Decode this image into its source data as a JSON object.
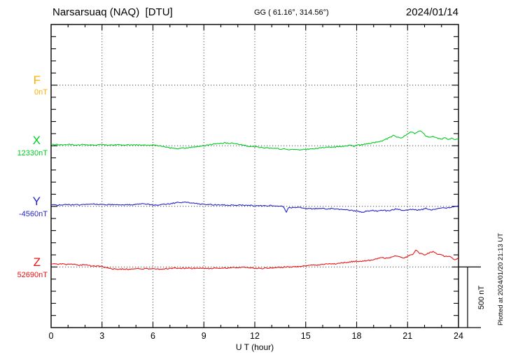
{
  "chart_data": {
    "type": "line",
    "title": "Narsarsuaq (NAQ)  [DTU]",
    "subtitle_gg": "GG ( 61.16°, 314.56°)",
    "date": "2024/01/14",
    "xlabel": "U T (hour)",
    "x_tick_labels": [
      "0",
      "3",
      "6",
      "9",
      "12",
      "15",
      "18",
      "21",
      "24"
    ],
    "x_range_hours": [
      0,
      24
    ],
    "x_major_tick_hours": 3,
    "x_minor_tick_hours": 1,
    "y_minor_tick_nT": 100,
    "grid": "dotted vertical lines every 3 hours, dotted horizontal line at each component baseline",
    "legend_position": "left-side component labels with baseline values",
    "scale_bar": {
      "label": "500 nT",
      "nT": 500
    },
    "plotted_note": "Plotted at 2024/01/20 21:13 UT",
    "series": [
      {
        "id": "F",
        "label": "F",
        "baseline_label": "0nT",
        "baseline_nT": 0,
        "color": "#FFB000",
        "points_hour_offsetnT": []
      },
      {
        "id": "X",
        "label": "X",
        "baseline_label": "12330nT",
        "baseline_nT": 12330,
        "color": "#00CC22",
        "points_hour_offsetnT": [
          [
            0,
            10
          ],
          [
            0.5,
            8
          ],
          [
            1,
            10
          ],
          [
            1.5,
            6
          ],
          [
            2,
            9
          ],
          [
            2.5,
            5
          ],
          [
            3,
            9
          ],
          [
            3.5,
            6
          ],
          [
            4,
            8
          ],
          [
            4.5,
            5
          ],
          [
            5,
            7
          ],
          [
            5.5,
            4
          ],
          [
            6,
            6
          ],
          [
            6.3,
            2
          ],
          [
            6.6,
            -6
          ],
          [
            7,
            -18
          ],
          [
            7.4,
            -25
          ],
          [
            7.8,
            -20
          ],
          [
            8.2,
            -14
          ],
          [
            8.6,
            -7
          ],
          [
            9,
            0
          ],
          [
            9.4,
            10
          ],
          [
            9.8,
            18
          ],
          [
            10.2,
            23
          ],
          [
            10.6,
            20
          ],
          [
            11,
            12
          ],
          [
            11.4,
            4
          ],
          [
            11.7,
            -5
          ],
          [
            12,
            -8
          ],
          [
            12.5,
            -15
          ],
          [
            13,
            -21
          ],
          [
            13.5,
            -26
          ],
          [
            14,
            -30
          ],
          [
            14.5,
            -34
          ],
          [
            15,
            -30
          ],
          [
            15.5,
            -24
          ],
          [
            16,
            -17
          ],
          [
            16.5,
            -12
          ],
          [
            17,
            -8
          ],
          [
            17.3,
            -4
          ],
          [
            17.6,
            2
          ],
          [
            17.8,
            -3
          ],
          [
            18,
            2
          ],
          [
            18.4,
            10
          ],
          [
            18.8,
            20
          ],
          [
            19.2,
            30
          ],
          [
            19.6,
            45
          ],
          [
            20,
            70
          ],
          [
            20.2,
            87
          ],
          [
            20.4,
            70
          ],
          [
            20.6,
            63
          ],
          [
            20.8,
            80
          ],
          [
            21,
            95
          ],
          [
            21.2,
            118
          ],
          [
            21.4,
            100
          ],
          [
            21.6,
            115
          ],
          [
            21.75,
            127
          ],
          [
            21.9,
            110
          ],
          [
            22.1,
            80
          ],
          [
            22.3,
            70
          ],
          [
            22.5,
            75
          ],
          [
            22.7,
            62
          ],
          [
            23,
            55
          ],
          [
            23.2,
            65
          ],
          [
            23.4,
            55
          ],
          [
            23.6,
            60
          ],
          [
            23.8,
            52
          ],
          [
            24,
            60
          ]
        ]
      },
      {
        "id": "Y",
        "label": "Y",
        "baseline_label": "-4560nT",
        "baseline_nT": -4560,
        "color": "#2222CC",
        "points_hour_offsetnT": [
          [
            0,
            12
          ],
          [
            0.5,
            10
          ],
          [
            1,
            14
          ],
          [
            1.5,
            12
          ],
          [
            2,
            16
          ],
          [
            2.5,
            20
          ],
          [
            3,
            15
          ],
          [
            3.5,
            14
          ],
          [
            4,
            16
          ],
          [
            4.5,
            12
          ],
          [
            5,
            15
          ],
          [
            5.5,
            20
          ],
          [
            6,
            12
          ],
          [
            6.5,
            14
          ],
          [
            7,
            22
          ],
          [
            7.4,
            30
          ],
          [
            7.8,
            34
          ],
          [
            8.2,
            30
          ],
          [
            8.6,
            22
          ],
          [
            9,
            16
          ],
          [
            9.5,
            13
          ],
          [
            10,
            12
          ],
          [
            10.5,
            10
          ],
          [
            11,
            10
          ],
          [
            11.5,
            8
          ],
          [
            12,
            6
          ],
          [
            12.5,
            5
          ],
          [
            13,
            6
          ],
          [
            13.4,
            2
          ],
          [
            13.7,
            -3
          ],
          [
            13.85,
            -50
          ],
          [
            14,
            -8
          ],
          [
            14.3,
            -12
          ],
          [
            14.6,
            -10
          ],
          [
            15,
            -16
          ],
          [
            15.4,
            -20
          ],
          [
            15.8,
            -16
          ],
          [
            16.2,
            -22
          ],
          [
            16.6,
            -18
          ],
          [
            17,
            -24
          ],
          [
            17.4,
            -28
          ],
          [
            17.8,
            -35
          ],
          [
            18.1,
            -42
          ],
          [
            18.4,
            -50
          ],
          [
            18.6,
            -38
          ],
          [
            18.9,
            -32
          ],
          [
            19.2,
            -40
          ],
          [
            19.5,
            -30
          ],
          [
            19.8,
            -38
          ],
          [
            20.1,
            -28
          ],
          [
            20.4,
            -20
          ],
          [
            20.7,
            -35
          ],
          [
            21,
            -30
          ],
          [
            21.3,
            -24
          ],
          [
            21.6,
            -30
          ],
          [
            21.9,
            -26
          ],
          [
            22.1,
            -16
          ],
          [
            22.4,
            -28
          ],
          [
            22.7,
            -20
          ],
          [
            23,
            -10
          ],
          [
            23.3,
            -16
          ],
          [
            23.6,
            -6
          ],
          [
            23.8,
            -2
          ],
          [
            24,
            8
          ]
        ]
      },
      {
        "id": "Z",
        "label": "Z",
        "baseline_label": "52690nT",
        "baseline_nT": 52690,
        "color": "#EE1111",
        "points_hour_offsetnT": [
          [
            0,
            30
          ],
          [
            0.3,
            26
          ],
          [
            0.6,
            24
          ],
          [
            1,
            20
          ],
          [
            1.3,
            22
          ],
          [
            1.6,
            15
          ],
          [
            2,
            18
          ],
          [
            2.3,
            12
          ],
          [
            2.6,
            8
          ],
          [
            3,
            4
          ],
          [
            3.3,
            -8
          ],
          [
            3.6,
            -14
          ],
          [
            4,
            -20
          ],
          [
            4.3,
            -16
          ],
          [
            4.6,
            -18
          ],
          [
            5,
            -14
          ],
          [
            5.3,
            -16
          ],
          [
            5.6,
            -12
          ],
          [
            6,
            -15
          ],
          [
            6.3,
            -19
          ],
          [
            6.6,
            -16
          ],
          [
            7,
            -13
          ],
          [
            7.3,
            -9
          ],
          [
            7.6,
            -12
          ],
          [
            8,
            -10
          ],
          [
            8.3,
            -12
          ],
          [
            8.6,
            -8
          ],
          [
            9,
            -11
          ],
          [
            9.3,
            -13
          ],
          [
            9.6,
            -10
          ],
          [
            10,
            -8
          ],
          [
            10.3,
            -11
          ],
          [
            10.6,
            -8
          ],
          [
            11,
            -5
          ],
          [
            11.3,
            -2
          ],
          [
            11.6,
            -6
          ],
          [
            12,
            -10
          ],
          [
            12.4,
            -12
          ],
          [
            12.8,
            -8
          ],
          [
            13.2,
            -5
          ],
          [
            13.6,
            -3
          ],
          [
            13.8,
            2
          ],
          [
            14,
            0
          ],
          [
            14.4,
            2
          ],
          [
            14.8,
            6
          ],
          [
            15,
            10
          ],
          [
            15.3,
            17
          ],
          [
            15.6,
            14
          ],
          [
            16,
            22
          ],
          [
            16.2,
            28
          ],
          [
            16.4,
            24
          ],
          [
            16.8,
            27
          ],
          [
            17,
            32
          ],
          [
            17.4,
            38
          ],
          [
            17.8,
            45
          ],
          [
            18.2,
            48
          ],
          [
            18.6,
            52
          ],
          [
            19,
            58
          ],
          [
            19.3,
            70
          ],
          [
            19.5,
            80
          ],
          [
            19.7,
            72
          ],
          [
            20,
            78
          ],
          [
            20.3,
            95
          ],
          [
            20.5,
            85
          ],
          [
            20.8,
            72
          ],
          [
            21,
            88
          ],
          [
            21.3,
            105
          ],
          [
            21.5,
            140
          ],
          [
            21.7,
            115
          ],
          [
            22,
            100
          ],
          [
            22.2,
            112
          ],
          [
            22.5,
            128
          ],
          [
            22.8,
            105
          ],
          [
            23,
            98
          ],
          [
            23.2,
            85
          ],
          [
            23.5,
            92
          ],
          [
            23.8,
            55
          ],
          [
            23.9,
            70
          ],
          [
            24,
            62
          ]
        ]
      }
    ]
  }
}
